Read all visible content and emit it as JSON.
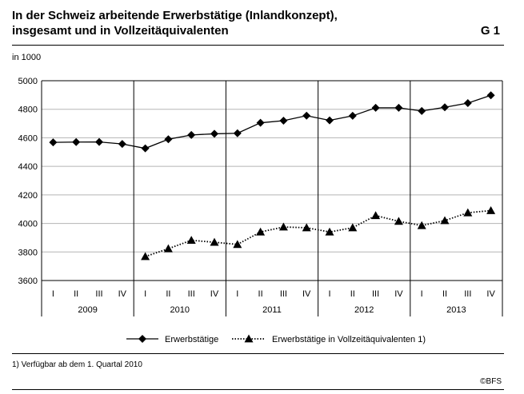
{
  "header": {
    "title_line1": "In der Schweiz arbeitende Erwerbstätige (Inlandkonzept),",
    "title_line2": "insgesamt und in Vollzeitäquivalenten",
    "code": "G 1"
  },
  "unit_label": "in 1000",
  "footnote": "1) Verfügbar ab dem 1. Quartal 2010",
  "credit": "©BFS",
  "chart_data": {
    "type": "line",
    "title": "In der Schweiz arbeitende Erwerbstätige (Inlandkonzept), insgesamt und in Vollzeitäquivalenten",
    "ylabel": "in 1000",
    "ylim": [
      3600,
      5000
    ],
    "yticks": [
      3600,
      3800,
      4000,
      4200,
      4400,
      4600,
      4800,
      5000
    ],
    "grid": true,
    "legend_position": "bottom",
    "quarters": [
      "I",
      "II",
      "III",
      "IV",
      "I",
      "II",
      "III",
      "IV",
      "I",
      "II",
      "III",
      "IV",
      "I",
      "II",
      "III",
      "IV",
      "I",
      "II",
      "III",
      "IV"
    ],
    "years": [
      "2009",
      "2010",
      "2011",
      "2012",
      "2013"
    ],
    "series": [
      {
        "name": "Erwerbstätige",
        "marker": "diamond",
        "line": "solid",
        "values": [
          4568,
          4570,
          4571,
          4557,
          4526,
          4590,
          4620,
          4628,
          4632,
          4705,
          4720,
          4755,
          4722,
          4754,
          4810,
          4810,
          4788,
          4814,
          4843,
          4898
        ]
      },
      {
        "name": "Erwerbstätige in Vollzeitäquivalenten 1)",
        "marker": "triangle",
        "line": "dotted",
        "values": [
          null,
          null,
          null,
          null,
          3768,
          3823,
          3882,
          3868,
          3853,
          3940,
          3975,
          3970,
          3940,
          3970,
          4055,
          4015,
          3985,
          4020,
          4075,
          4090
        ]
      }
    ]
  }
}
